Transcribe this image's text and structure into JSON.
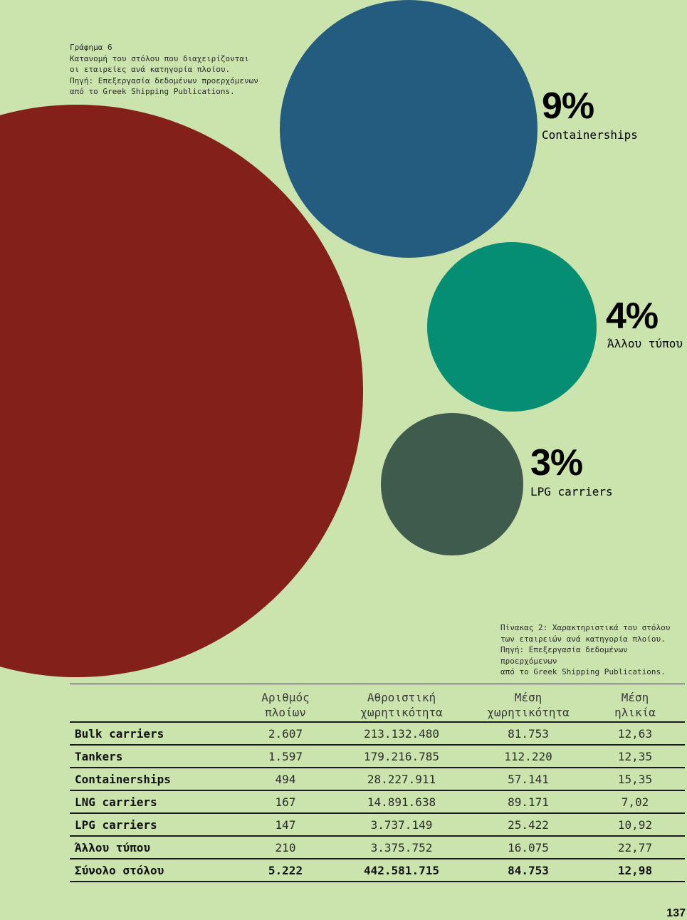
{
  "figure": {
    "caption": "Γράφημα 6\nΚατανομή του στόλου που διαχειρίζονται\nοι εταιρείες ανά κατηγορία πλοίου.\nΠηγή: Επεξεργασία δεδομένων προερχόμενων\nαπό το Greek Shipping Publications."
  },
  "chart_data": {
    "type": "bubble",
    "title": "Κατανομή του στόλου που διαχειρίζονται οι εταιρείες ανά κατηγορία πλοίου",
    "series": [
      {
        "name": "Bulk carriers",
        "percent": null,
        "color": "#832019",
        "labeled": false
      },
      {
        "name": "Containerships",
        "percent": 9,
        "value_label": "9%",
        "color": "#245c7f",
        "labeled": true
      },
      {
        "name": "Άλλου τύπου",
        "percent": 4,
        "value_label": "4%",
        "color": "#058e73",
        "labeled": true
      },
      {
        "name": "LPG carriers",
        "percent": 3,
        "value_label": "3%",
        "color": "#3e5b4d",
        "labeled": true
      }
    ]
  },
  "table": {
    "caption": "Πίνακας 2: Χαρακτηριστικά του στόλου\nτων εταιρειών ανά κατηγορία πλοίου.\nΠηγή: Επεξεργασία δεδομένων προερχόμενων\nαπό το Greek Shipping Publications.",
    "headers": [
      "",
      "Αριθμός\nπλοίων",
      "Αθροιστική\nχωρητικότητα",
      "Μέση\nχωρητικότητα",
      "Μέση\nηλικία"
    ],
    "rows": [
      [
        "Bulk carriers",
        "2.607",
        "213.132.480",
        "81.753",
        "12,63"
      ],
      [
        "Tankers",
        "1.597",
        "179.216.785",
        "112.220",
        "12,35"
      ],
      [
        "Containerships",
        "494",
        "28.227.911",
        "57.141",
        "15,35"
      ],
      [
        "LNG carriers",
        "167",
        "14.891.638",
        "89.171",
        "7,02"
      ],
      [
        "LPG carriers",
        "147",
        "3.737.149",
        "25.422",
        "10,92"
      ],
      [
        "Άλλου τύπου",
        "210",
        "3.375.752",
        "16.075",
        "22,77"
      ]
    ],
    "total": [
      "Σύνολο στόλου",
      "5.222",
      "442.581.715",
      "84.753",
      "12,98"
    ]
  },
  "page_number": "137"
}
